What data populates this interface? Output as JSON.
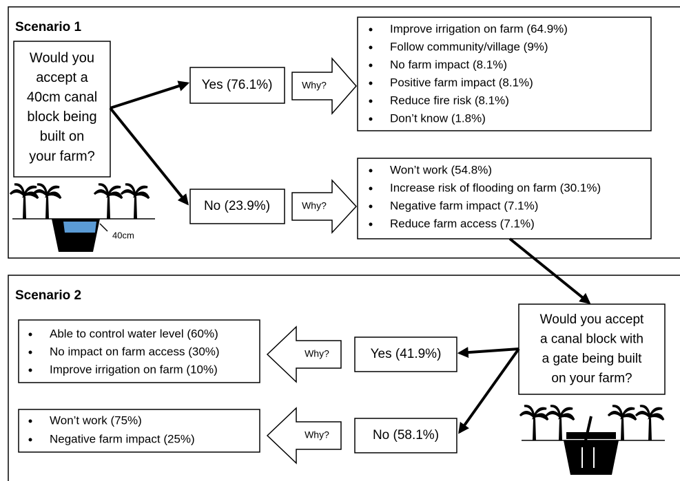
{
  "scenario1": {
    "label": "Scenario 1",
    "question": [
      "Would you",
      "accept a",
      "40cm canal",
      "block being",
      "built on",
      "your farm?"
    ],
    "depth_label": "40cm",
    "yes": {
      "label": "Yes (76.1%)",
      "why": "Why?",
      "reasons": [
        "Improve irrigation on farm (64.9%)",
        "Follow community/village (9%)",
        "No farm impact (8.1%)",
        "Positive farm impact (8.1%)",
        "Reduce fire risk (8.1%)",
        "Don’t know (1.8%)"
      ]
    },
    "no": {
      "label": "No (23.9%)",
      "why": "Why?",
      "reasons": [
        "Won’t work (54.8%)",
        "Increase risk of flooding on farm (30.1%)",
        "Negative farm impact (7.1%)",
        "Reduce farm access (7.1%)"
      ]
    }
  },
  "scenario2": {
    "label": "Scenario 2",
    "question": [
      "Would you accept",
      "a canal block with",
      "a gate being built",
      "on your farm?"
    ],
    "yes": {
      "label": "Yes (41.9%)",
      "why": "Why?",
      "reasons": [
        "Able to control water level (60%)",
        "No impact on farm access (30%)",
        "Improve irrigation on farm (10%)"
      ]
    },
    "no": {
      "label": "No (58.1%)",
      "why": "Why?",
      "reasons": [
        "Won’t work (75%)",
        "Negative farm impact (25%)"
      ]
    }
  }
}
